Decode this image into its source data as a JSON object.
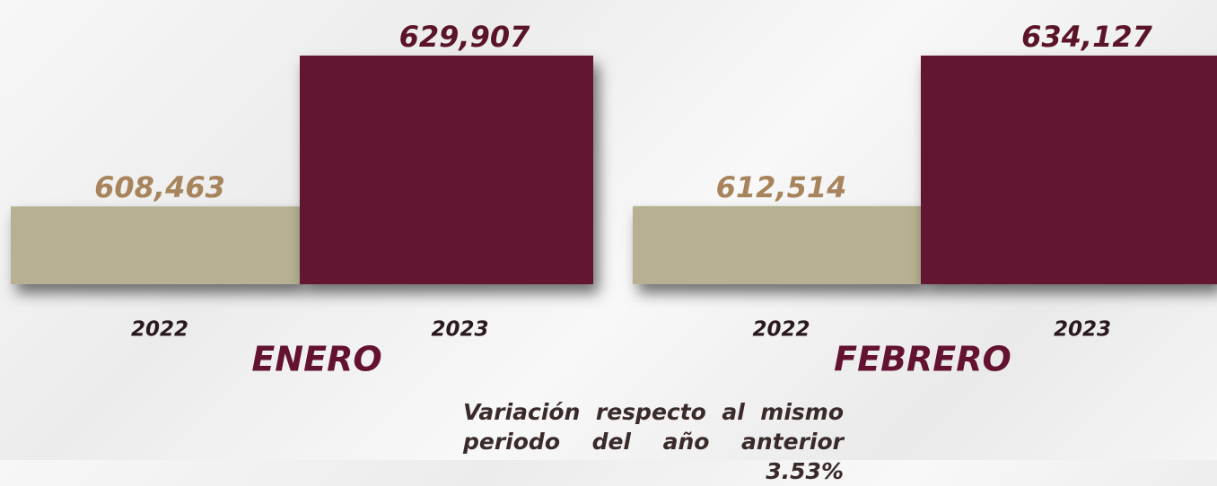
{
  "chart_data": [
    {
      "type": "bar",
      "title": "ENERO",
      "categories": [
        "2022",
        "2023"
      ],
      "values": [
        608463,
        629907
      ],
      "value_labels": [
        "608,463",
        "629,907"
      ],
      "colors": [
        "#b6b192",
        "#641232"
      ],
      "label_colors": [
        "#a8845c",
        "#5b1528"
      ],
      "ylim": [
        597400,
        629907
      ]
    },
    {
      "type": "bar",
      "title": "FEBRERO",
      "categories": [
        "2022",
        "2023"
      ],
      "values": [
        612514,
        634127
      ],
      "value_labels": [
        "612,514",
        "634,127"
      ],
      "colors": [
        "#b6b192",
        "#641232"
      ],
      "label_colors": [
        "#a8845c",
        "#5b1528"
      ],
      "ylim": [
        601300,
        634127
      ]
    }
  ],
  "note": "Variación respecto al mismo periodo del año anterior 3.53%"
}
